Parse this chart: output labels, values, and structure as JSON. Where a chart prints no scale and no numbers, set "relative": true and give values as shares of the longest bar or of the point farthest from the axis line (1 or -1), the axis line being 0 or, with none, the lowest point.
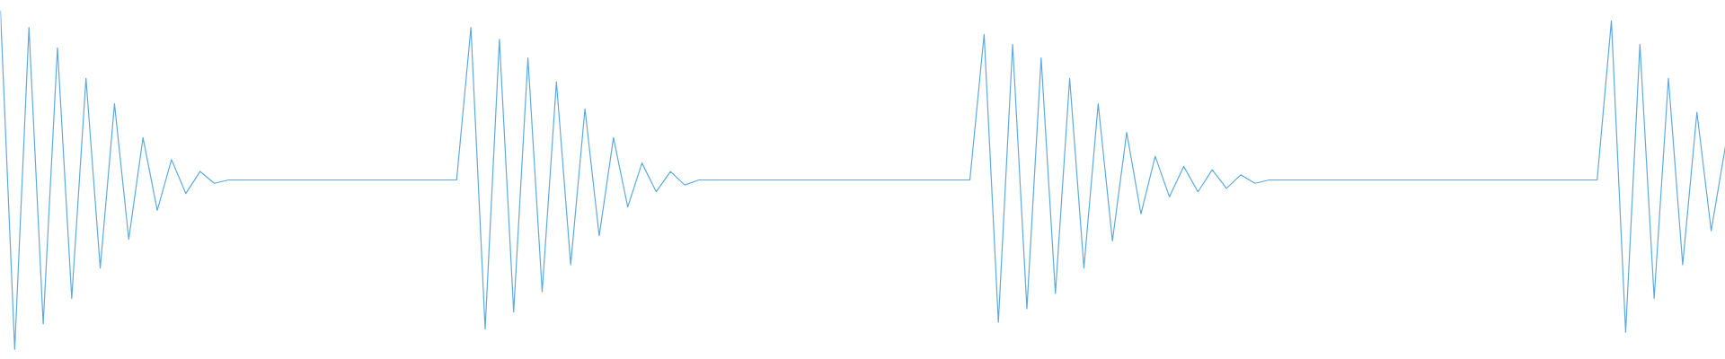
{
  "chart_data": {
    "type": "line",
    "relative": true,
    "color": "#5eaae0",
    "categories": [
      null,
      null,
      null,
      null,
      null,
      null,
      null,
      null,
      null,
      null,
      null,
      null,
      null,
      null,
      null,
      null,
      null,
      null,
      null,
      null,
      null,
      null,
      null,
      null,
      null,
      null,
      null,
      null,
      null,
      null,
      null,
      null,
      null,
      null,
      null,
      null,
      null,
      null,
      null,
      null,
      null,
      null,
      null,
      null,
      null,
      null,
      null,
      null,
      null,
      null,
      null,
      null,
      null,
      null,
      null,
      null,
      null,
      null,
      null,
      null,
      null,
      null,
      null,
      null,
      null,
      null,
      null,
      null,
      null,
      null,
      null,
      null,
      null,
      null,
      null,
      null,
      null,
      null,
      null,
      null,
      null,
      null,
      null,
      null,
      null,
      null,
      null,
      null,
      null,
      null,
      null,
      null,
      null,
      null,
      null,
      null,
      null,
      null,
      null,
      null,
      null,
      null,
      null,
      null,
      null,
      null,
      null,
      null,
      null,
      null,
      null,
      null,
      null,
      null,
      null,
      null,
      null,
      null,
      null,
      null,
      null,
      null
    ],
    "values": [
      1,
      0,
      0.95,
      0.075,
      0.89,
      0.15,
      0.8,
      0.24,
      0.725,
      0.325,
      0.625,
      0.41,
      0.56,
      0.46,
      0.525,
      0.49,
      0.5,
      0.5,
      0.5,
      0.5,
      0.5,
      0.5,
      0.5,
      0.5,
      0.5,
      0.5,
      0.5,
      0.5,
      0.5,
      0.5,
      0.5,
      0.5,
      0.5,
      0.95,
      0.06,
      0.915,
      0.11,
      0.86,
      0.17,
      0.79,
      0.25,
      0.71,
      0.335,
      0.625,
      0.42,
      0.55,
      0.465,
      0.525,
      0.485,
      0.5,
      0.5,
      0.5,
      0.5,
      0.5,
      0.5,
      0.5,
      0.5,
      0.5,
      0.5,
      0.5,
      0.5,
      0.5,
      0.5,
      0.5,
      0.5,
      0.5,
      0.5,
      0.5,
      0.5,
      0.93,
      0.08,
      0.9,
      0.12,
      0.86,
      0.165,
      0.8,
      0.24,
      0.725,
      0.32,
      0.64,
      0.4,
      0.57,
      0.45,
      0.54,
      0.465,
      0.53,
      0.475,
      0.515,
      0.49,
      0.5,
      0.5,
      0.5,
      0.5,
      0.5,
      0.5,
      0.5,
      0.5,
      0.5,
      0.5,
      0.5,
      0.5,
      0.5,
      0.5,
      0.5,
      0.5,
      0.5,
      0.5,
      0.5,
      0.5,
      0.5,
      0.5,
      0.5,
      0.5,
      0.97,
      0.05,
      0.9,
      0.15,
      0.8,
      0.25,
      0.7,
      0.35,
      0.6
    ]
  }
}
